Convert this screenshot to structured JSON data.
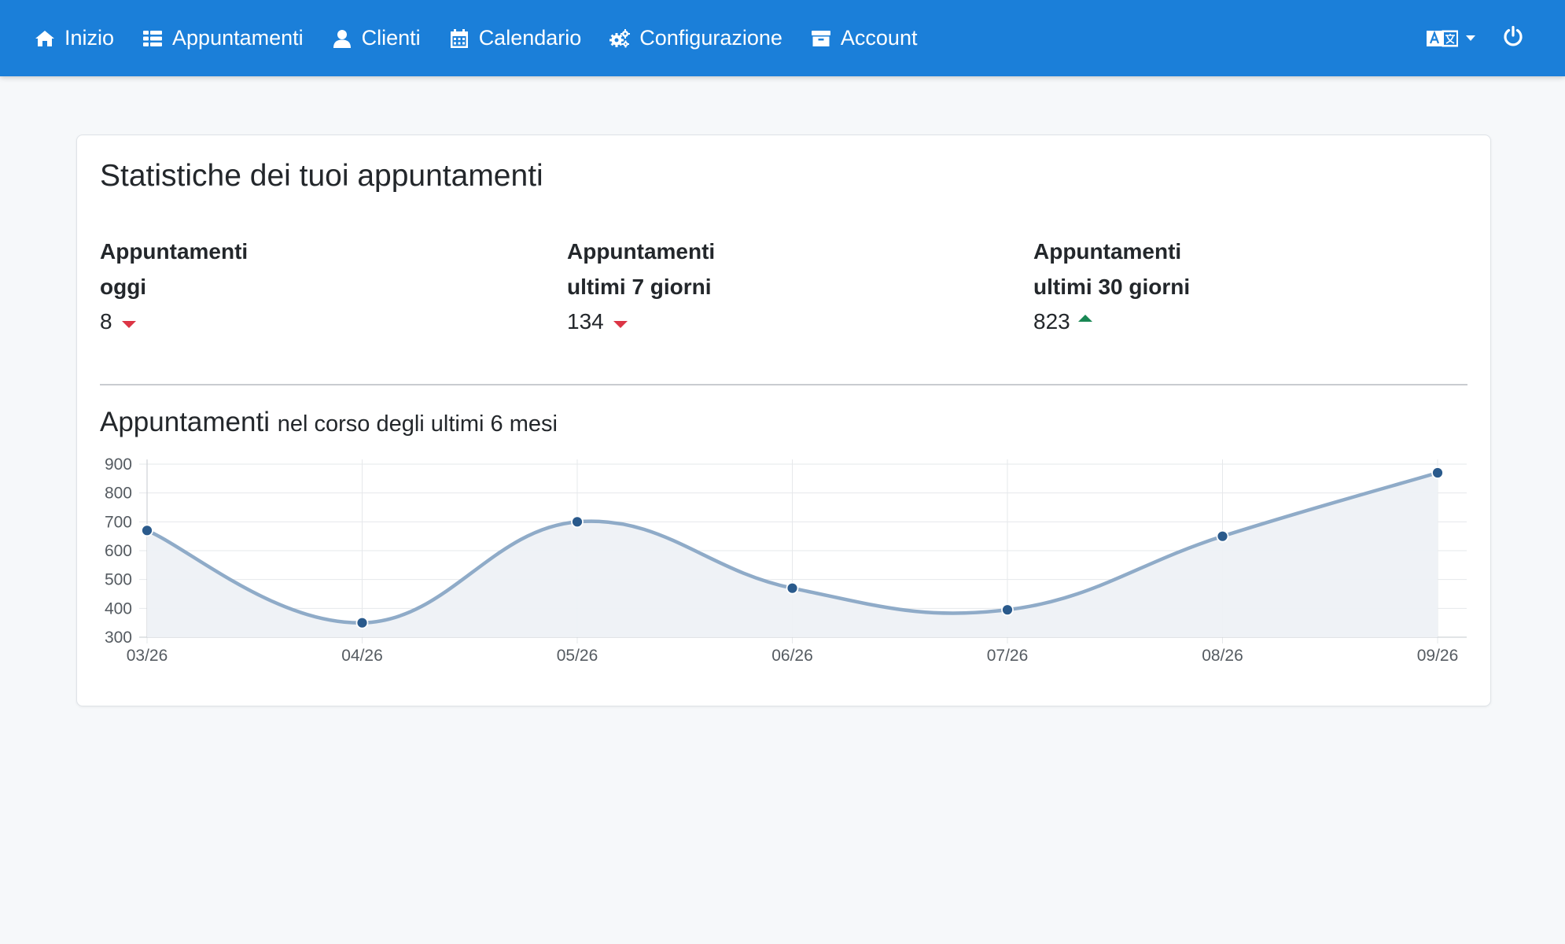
{
  "nav": {
    "items": [
      {
        "label": "Inizio",
        "icon": "home-icon"
      },
      {
        "label": "Appuntamenti",
        "icon": "list-icon"
      },
      {
        "label": "Clienti",
        "icon": "user-icon"
      },
      {
        "label": "Calendario",
        "icon": "calendar-icon"
      },
      {
        "label": "Configurazione",
        "icon": "cogs-icon"
      },
      {
        "label": "Account",
        "icon": "archive-icon"
      }
    ],
    "right": {
      "language_icon": "translate-icon",
      "power_icon": "power-icon"
    }
  },
  "colors": {
    "navbar": "#1b7fd9",
    "down": "#dc3545",
    "up": "#198754",
    "line": "#8fabc8",
    "point": "#2a5a8c",
    "fill": "#eef1f6"
  },
  "stats": {
    "title": "Statistiche dei tuoi appuntamenti",
    "items": [
      {
        "label_line1": "Appuntamenti",
        "label_line2": "oggi",
        "value": "8",
        "trend": "down"
      },
      {
        "label_line1": "Appuntamenti",
        "label_line2": "ultimi 7 giorni",
        "value": "134",
        "trend": "down"
      },
      {
        "label_line1": "Appuntamenti",
        "label_line2": "ultimi 30 giorni",
        "value": "823",
        "trend": "up"
      }
    ]
  },
  "chart_title": {
    "main": "Appuntamenti",
    "sub": "nel corso degli ultimi 6 mesi"
  },
  "chart_data": {
    "type": "line",
    "categories": [
      "03/26",
      "04/26",
      "05/26",
      "06/26",
      "07/26",
      "08/26",
      "09/26"
    ],
    "values": [
      670,
      350,
      700,
      470,
      395,
      650,
      870
    ],
    "yticks": [
      300,
      400,
      500,
      600,
      700,
      800,
      900
    ],
    "ylim": [
      300,
      900
    ],
    "grid": true,
    "fill": true,
    "smooth": true
  }
}
